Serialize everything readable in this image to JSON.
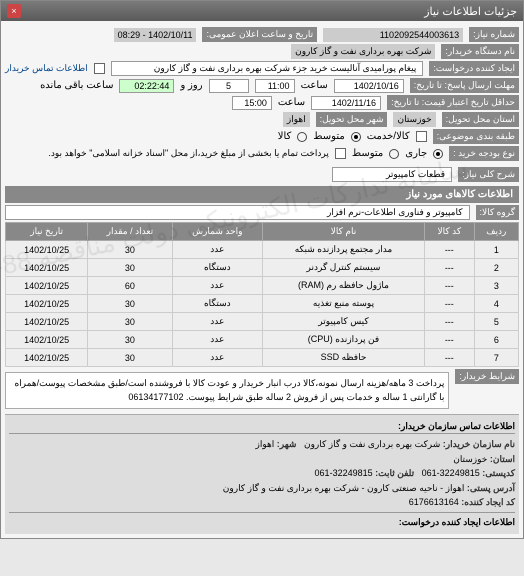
{
  "window": {
    "title": "جزئیات اطلاعات نیاز"
  },
  "header": {
    "number_label": "شماره نیاز:",
    "number": "1102092544003613",
    "datetime_label": "تاریخ و ساعت اعلان عمومی:",
    "datetime": "1402/10/11 - 08:29",
    "org_label": "نام دستگاه خریدار:",
    "org": "شرکت بهره برداری نفت و گاز کارون",
    "creator_label": "ایجاد کننده درخواست:",
    "creator": "پیغام پورامیدی آنالیست خرید جزء شرکت بهره برداری نفت و گاز کارون",
    "contact_link": "اطلاعات تماس خریدار",
    "deadline_label": "مهلت ارسال پاسخ: تا تاریخ:",
    "deadline_date": "1402/10/16",
    "deadline_time_label": "ساعت",
    "deadline_time": "11:00",
    "remaining_days": "5",
    "remaining_days_label": "روز و",
    "remaining_time": "02:22:44",
    "remaining_label": "ساعت باقی مانده",
    "validity_label": "حداقل تاریخ اعتبار قیمت: تا تاریخ:",
    "validity_date": "1402/11/16",
    "validity_time_label": "ساعت",
    "validity_time": "15:00",
    "state_label": "استان محل تحویل:",
    "state": "خوزستان",
    "city_label": "شهر محل تحویل:",
    "city": "اهواز",
    "budget_label": "طبقه بندی موضوعی:",
    "goods_label": "کالا/خدمت",
    "budget_radio": {
      "a": "کالا",
      "b": "خدمت",
      "c": "متوسط"
    },
    "buy_type_label": "نوع بودجه خرید :",
    "buy_radio": {
      "a": "جاری",
      "b": "متوسط"
    },
    "note": "پرداخت تمام یا بخشی از مبلغ خرید،از محل \"اسناد خزانه اسلامی\" خواهد بود.",
    "desc_label": "شرح کلی نیاز:",
    "desc": "قطعات کامپیوتر"
  },
  "goods": {
    "section": "اطلاعات کالاهای مورد نیاز",
    "group_label": "گروه کالا:",
    "group": "کامپیوتر و فناوری اطلاعات-نرم افزار",
    "columns": [
      "ردیف",
      "کد کالا",
      "نام کالا",
      "واحد شمارش",
      "تعداد / مقدار",
      "تاریخ نیاز"
    ],
    "rows": [
      [
        "1",
        "---",
        "مدار مجتمع پردازنده شبکه",
        "عدد",
        "30",
        "1402/10/25"
      ],
      [
        "2",
        "---",
        "سیستم کنترل گردنر",
        "دستگاه",
        "30",
        "1402/10/25"
      ],
      [
        "3",
        "---",
        "ماژول حافظه رم (RAM)",
        "عدد",
        "60",
        "1402/10/25"
      ],
      [
        "4",
        "---",
        "پوسته منبع تغذیه",
        "دستگاه",
        "30",
        "1402/10/25"
      ],
      [
        "5",
        "---",
        "کیس کامپیوتر",
        "عدد",
        "30",
        "1402/10/25"
      ],
      [
        "6",
        "---",
        "فن پردازنده (CPU)",
        "عدد",
        "30",
        "1402/10/25"
      ],
      [
        "7",
        "---",
        "حافظه SSD",
        "عدد",
        "30",
        "1402/10/25"
      ]
    ]
  },
  "buyer_note": {
    "label": "شرایط خریدار:",
    "text": "پرداخت 3 ماهه/هزینه ارسال نمونه،کالا درب انبار خریدار و عودت کالا با فروشنده است/طبق مشخصات پیوست/همراه با گارانتی 1 ساله و خدمات پس از فروش 2 ساله طبق شرایط پیوست. 06134177102"
  },
  "footer": {
    "section": "اطلاعات تماس سازمان خریدار:",
    "org_label": "نام سازمان خریدار:",
    "org": "شرکت بهره برداری نفت و گاز کارون",
    "state_label": "استان:",
    "state": "خوزستان",
    "city_label": "شهر:",
    "city": "اهواز",
    "postcode_label": "کدپستی:",
    "postcode": "32249815-061",
    "phone_label": "تلفن ثابت:",
    "phone": "32249815-061",
    "addr_label": "آدرس پستی:",
    "addr": "اهواز - ناحیه صنعتی کارون - شرکت بهره برداری نفت و گاز کارون",
    "id_label": "کد ایجاد کننده:",
    "id": "6176613164",
    "creator_footer_label": "اطلاعات ایجاد کننده درخواست:"
  },
  "watermark": "سامانه تدارکات الکترونیکی دولت\nمناقصه 88-234967"
}
